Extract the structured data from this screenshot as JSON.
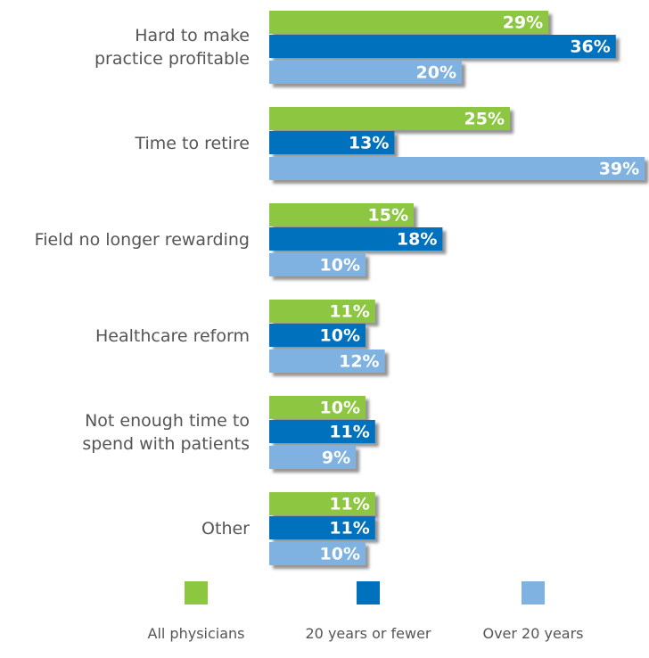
{
  "chart_data": {
    "type": "bar",
    "orientation": "horizontal",
    "categories": [
      "Hard to make\npractice profitable",
      "Time to retire",
      "Field no longer rewarding",
      "Healthcare reform",
      "Not enough time to\nspend with patients",
      "Other"
    ],
    "series": [
      {
        "name": "All physicians",
        "color": "#8dc63f",
        "values": [
          29,
          25,
          15,
          11,
          10,
          11
        ],
        "value_labels": [
          "29%",
          "25%",
          "15%",
          "11%",
          "10%",
          "11%"
        ]
      },
      {
        "name": "20 years or fewer",
        "color": "#0071bc",
        "values": [
          36,
          13,
          18,
          10,
          11,
          11
        ],
        "value_labels": [
          "36%",
          "13%",
          "18%",
          "10%",
          "11%",
          "11%"
        ]
      },
      {
        "name": "Over 20 years",
        "color": "#7fb2e0",
        "values": [
          20,
          39,
          10,
          12,
          9,
          10
        ],
        "value_labels": [
          "20%",
          "39%",
          "10%",
          "12%",
          "9%",
          "10%"
        ]
      }
    ],
    "legend": "bottom"
  }
}
